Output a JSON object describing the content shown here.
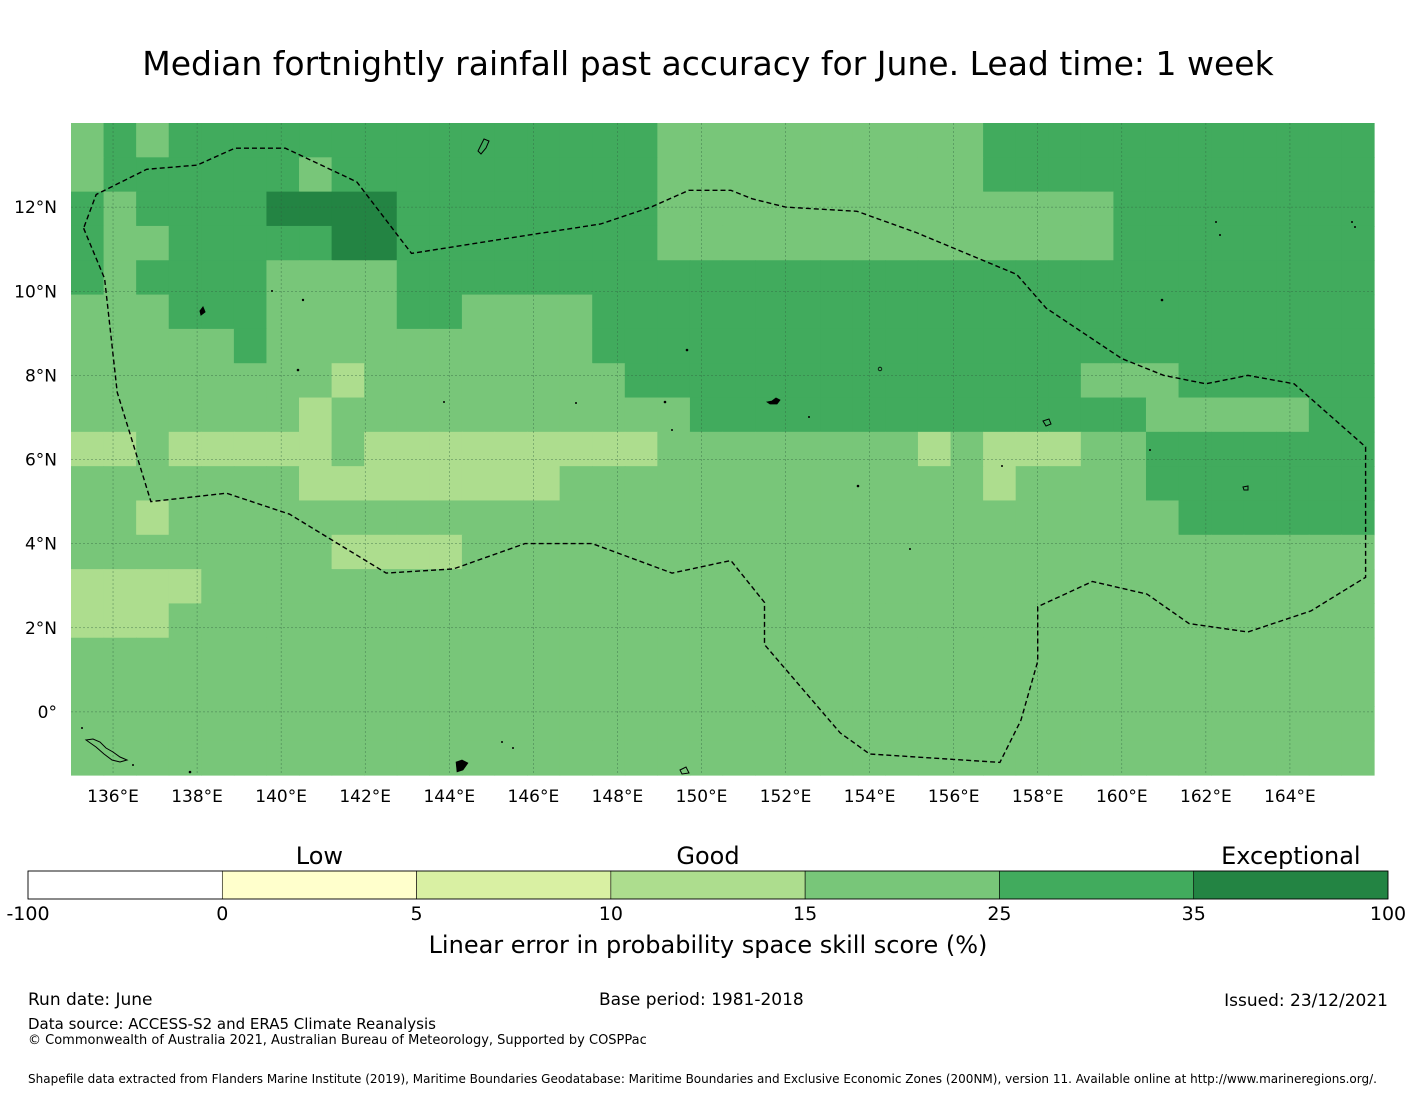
{
  "title": "Median fortnightly rainfall past accuracy for June. Lead time: 1 week",
  "chart_data": {
    "type": "heatmap",
    "map_extent": {
      "lon": [
        135,
        166
      ],
      "lat": [
        -1.5,
        14
      ]
    },
    "x_ticks": [
      136,
      138,
      140,
      142,
      144,
      146,
      148,
      150,
      152,
      154,
      156,
      158,
      160,
      162,
      164
    ],
    "x_tick_labels": [
      "136°E",
      "138°E",
      "140°E",
      "142°E",
      "144°E",
      "146°E",
      "148°E",
      "150°E",
      "152°E",
      "154°E",
      "156°E",
      "158°E",
      "160°E",
      "162°E",
      "164°E"
    ],
    "y_ticks": [
      0,
      2,
      4,
      6,
      8,
      10,
      12
    ],
    "y_tick_labels": [
      "0°",
      "2°N",
      "4°N",
      "6°N",
      "8°N",
      "10°N",
      "12°N"
    ],
    "grid": true,
    "cell_size_deg": 0.83,
    "color_scale": {
      "bounds": [
        -100,
        0,
        5,
        10,
        15,
        25,
        35,
        100
      ],
      "bound_labels": [
        "-100",
        "0",
        "5",
        "10",
        "15",
        "25",
        "35",
        "100"
      ],
      "colors": [
        "#ffffff",
        "#ffffcc",
        "#d9f0a3",
        "#addd8e",
        "#78c679",
        "#41ab5d",
        "#238443"
      ],
      "categories": [
        {
          "label": "Low",
          "bin_index": 1
        },
        {
          "label": "Good",
          "bin_index": 3
        },
        {
          "label": "Exceptional",
          "bin_index": 6
        }
      ],
      "label": "Linear error in probability space skill score (%)"
    },
    "skill_grid_class_codes": [
      "4545555555555555554444444444555555555555",
      "4555555455555555554444444444555555555555",
      "5455556666555555554444444444444455555555",
      "5445555566555555554444444444444455555555",
      "5455554444555555555555555555555555555555",
      "4445554444554444555555555555555555555555",
      "4444454444444444555555555555555555555555",
      "4444444434444444455555555555555444555555",
      "4444444344444444444555555555555554444455",
      "3343333343333333334444444434333445555555",
      "4444444333333334444444444444344445555555",
      "4434444444444444444444444444444444555555",
      "4444444433334444444444444444444444444444",
      "3333444444444444444444444444444444444444",
      "3334444444444444444444444444444444444444",
      "4444444444444444444444444444444444444444",
      "4444444444444444444444444444444444444444",
      "4444444444444444444444444444444444444444",
      "4444444444444444444444444444444444444444"
    ],
    "eez_boundary_lonlat": [
      [
        135.3,
        11.5
      ],
      [
        135.8,
        10.3
      ],
      [
        136.1,
        7.6
      ],
      [
        136.9,
        5.0
      ],
      [
        138.7,
        5.2
      ],
      [
        140.2,
        4.7
      ],
      [
        142.5,
        3.3
      ],
      [
        144.1,
        3.4
      ],
      [
        145.8,
        4.0
      ],
      [
        147.4,
        4.0
      ],
      [
        149.3,
        3.3
      ],
      [
        150.7,
        3.6
      ],
      [
        151.5,
        2.6
      ],
      [
        151.5,
        1.6
      ],
      [
        153.3,
        -0.5
      ],
      [
        154.0,
        -1.0
      ],
      [
        157.1,
        -1.2
      ],
      [
        157.6,
        -0.2
      ],
      [
        158.0,
        1.2
      ],
      [
        158.0,
        2.5
      ],
      [
        159.3,
        3.1
      ],
      [
        160.6,
        2.8
      ],
      [
        161.6,
        2.1
      ],
      [
        163.0,
        1.9
      ],
      [
        164.5,
        2.4
      ],
      [
        165.8,
        3.2
      ],
      [
        165.8,
        6.3
      ],
      [
        164.1,
        7.8
      ],
      [
        163.0,
        8.0
      ],
      [
        162.0,
        7.8
      ],
      [
        161.0,
        8.0
      ],
      [
        160.0,
        8.4
      ],
      [
        158.2,
        9.6
      ],
      [
        157.5,
        10.4
      ],
      [
        155.1,
        11.4
      ],
      [
        153.7,
        11.9
      ],
      [
        152.0,
        12.0
      ],
      [
        151.2,
        12.2
      ],
      [
        150.7,
        12.4
      ],
      [
        149.7,
        12.4
      ],
      [
        148.8,
        12.0
      ],
      [
        147.6,
        11.6
      ],
      [
        145.0,
        11.2
      ],
      [
        143.1,
        10.9
      ],
      [
        141.8,
        12.6
      ],
      [
        140.1,
        13.4
      ],
      [
        138.9,
        13.4
      ],
      [
        138.0,
        13.0
      ],
      [
        136.8,
        12.9
      ],
      [
        135.6,
        12.3
      ],
      [
        135.3,
        11.5
      ]
    ]
  },
  "footer": {
    "run_date": "Run date: June",
    "base_period": "Base period: 1981-2018",
    "issued": "Issued: 23/12/2021",
    "data_source": "Data source: ACCESS-S2 and ERA5 Climate Reanalysis",
    "copyright": "© Commonwealth of Australia 2021, Australian Bureau of Meteorology, Supported by COSPPac",
    "shapefile": "Shapefile data extracted from Flanders Marine Institute (2019), Maritime Boundaries Geodatabase: Maritime Boundaries and Exclusive Economic Zones (200NM), version 11. Available online at http://www.marineregions.org/."
  }
}
